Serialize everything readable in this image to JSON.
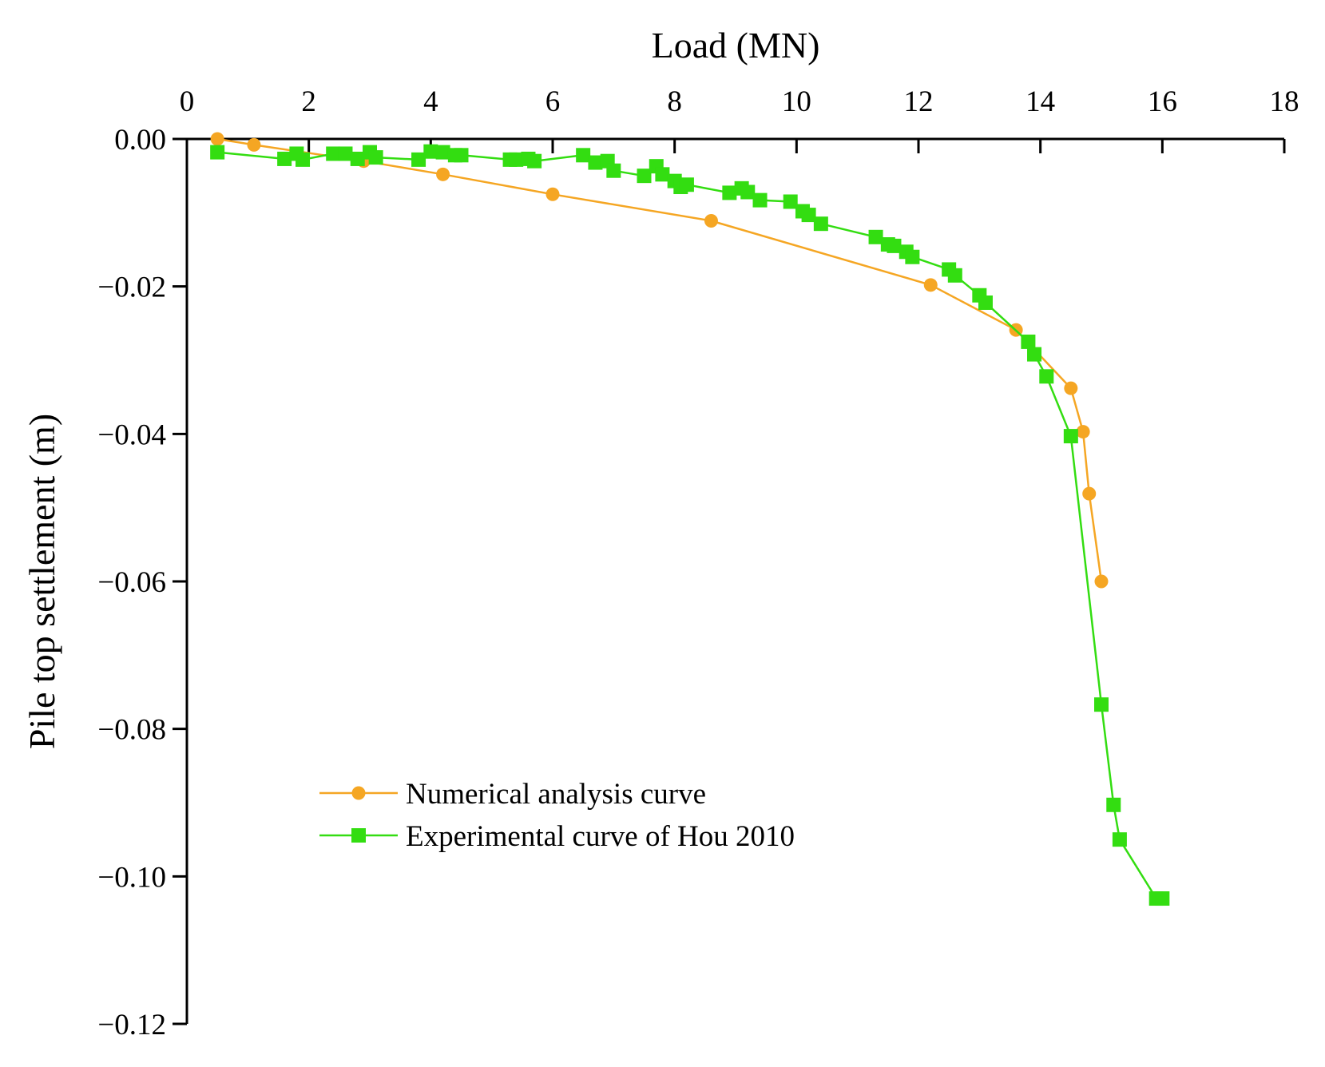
{
  "chart_data": {
    "type": "line",
    "title": "",
    "xlabel": "Load (MN)",
    "ylabel": "Pile top settlement (m)",
    "x_axis_position": "top",
    "xlim": [
      0,
      18
    ],
    "ylim": [
      -0.12,
      0
    ],
    "x_ticks": [
      {
        "value": 0,
        "label": "0"
      },
      {
        "value": 2,
        "label": "2"
      },
      {
        "value": 4,
        "label": "4"
      },
      {
        "value": 6,
        "label": "6"
      },
      {
        "value": 8,
        "label": "8"
      },
      {
        "value": 10,
        "label": "10"
      },
      {
        "value": 12,
        "label": "12"
      },
      {
        "value": 14,
        "label": "14"
      },
      {
        "value": 16,
        "label": "16"
      },
      {
        "value": 18,
        "label": "18"
      }
    ],
    "y_ticks": [
      {
        "value": 0,
        "label": "0.00"
      },
      {
        "value": -0.02,
        "label": "−0.02"
      },
      {
        "value": -0.04,
        "label": "−0.04"
      },
      {
        "value": -0.06,
        "label": "−0.06"
      },
      {
        "value": -0.08,
        "label": "−0.08"
      },
      {
        "value": -0.1,
        "label": "−0.10"
      },
      {
        "value": -0.12,
        "label": "−0.12"
      }
    ],
    "grid": false,
    "legend_position": "lower-left",
    "series": [
      {
        "name": "Numerical analysis curve",
        "color": "#F5A623",
        "marker": "circle",
        "points": [
          [
            0.5,
            0.0
          ],
          [
            1.1,
            -0.0008
          ],
          [
            2.9,
            -0.003
          ],
          [
            4.2,
            -0.0048
          ],
          [
            6.0,
            -0.0075
          ],
          [
            8.6,
            -0.0111
          ],
          [
            12.2,
            -0.0198
          ],
          [
            13.6,
            -0.0259
          ],
          [
            14.5,
            -0.0338
          ],
          [
            14.7,
            -0.0397
          ],
          [
            14.8,
            -0.0481
          ],
          [
            15.0,
            -0.06
          ]
        ]
      },
      {
        "name": "Experimental curve of Hou 2010",
        "color": "#33DD11",
        "marker": "square",
        "points": [
          [
            0.5,
            -0.0018
          ],
          [
            1.6,
            -0.0027
          ],
          [
            1.8,
            -0.002
          ],
          [
            1.9,
            -0.0028
          ],
          [
            2.4,
            -0.002
          ],
          [
            2.6,
            -0.002
          ],
          [
            2.8,
            -0.0027
          ],
          [
            3.0,
            -0.0018
          ],
          [
            3.1,
            -0.0025
          ],
          [
            3.8,
            -0.0028
          ],
          [
            4.0,
            -0.0017
          ],
          [
            4.2,
            -0.0018
          ],
          [
            4.4,
            -0.0022
          ],
          [
            4.5,
            -0.0022
          ],
          [
            5.3,
            -0.0028
          ],
          [
            5.4,
            -0.0028
          ],
          [
            5.6,
            -0.0027
          ],
          [
            5.7,
            -0.003
          ],
          [
            6.5,
            -0.0022
          ],
          [
            6.7,
            -0.0032
          ],
          [
            6.9,
            -0.003
          ],
          [
            7.0,
            -0.0043
          ],
          [
            7.5,
            -0.005
          ],
          [
            7.7,
            -0.0037
          ],
          [
            7.8,
            -0.0048
          ],
          [
            8.0,
            -0.0057
          ],
          [
            8.1,
            -0.0065
          ],
          [
            8.2,
            -0.0062
          ],
          [
            8.9,
            -0.0073
          ],
          [
            9.1,
            -0.0067
          ],
          [
            9.2,
            -0.0072
          ],
          [
            9.4,
            -0.0083
          ],
          [
            9.9,
            -0.0085
          ],
          [
            10.1,
            -0.0098
          ],
          [
            10.2,
            -0.0103
          ],
          [
            10.4,
            -0.0115
          ],
          [
            11.3,
            -0.0133
          ],
          [
            11.5,
            -0.0143
          ],
          [
            11.6,
            -0.0145
          ],
          [
            11.8,
            -0.0153
          ],
          [
            11.9,
            -0.016
          ],
          [
            12.5,
            -0.0177
          ],
          [
            12.6,
            -0.0185
          ],
          [
            13.0,
            -0.0212
          ],
          [
            13.1,
            -0.0222
          ],
          [
            13.8,
            -0.0275
          ],
          [
            13.9,
            -0.0292
          ],
          [
            14.1,
            -0.0322
          ],
          [
            14.5,
            -0.0403
          ],
          [
            15.0,
            -0.0767
          ],
          [
            15.2,
            -0.0903
          ],
          [
            15.3,
            -0.095
          ],
          [
            15.9,
            -0.103
          ],
          [
            16.0,
            -0.103
          ]
        ]
      }
    ]
  }
}
